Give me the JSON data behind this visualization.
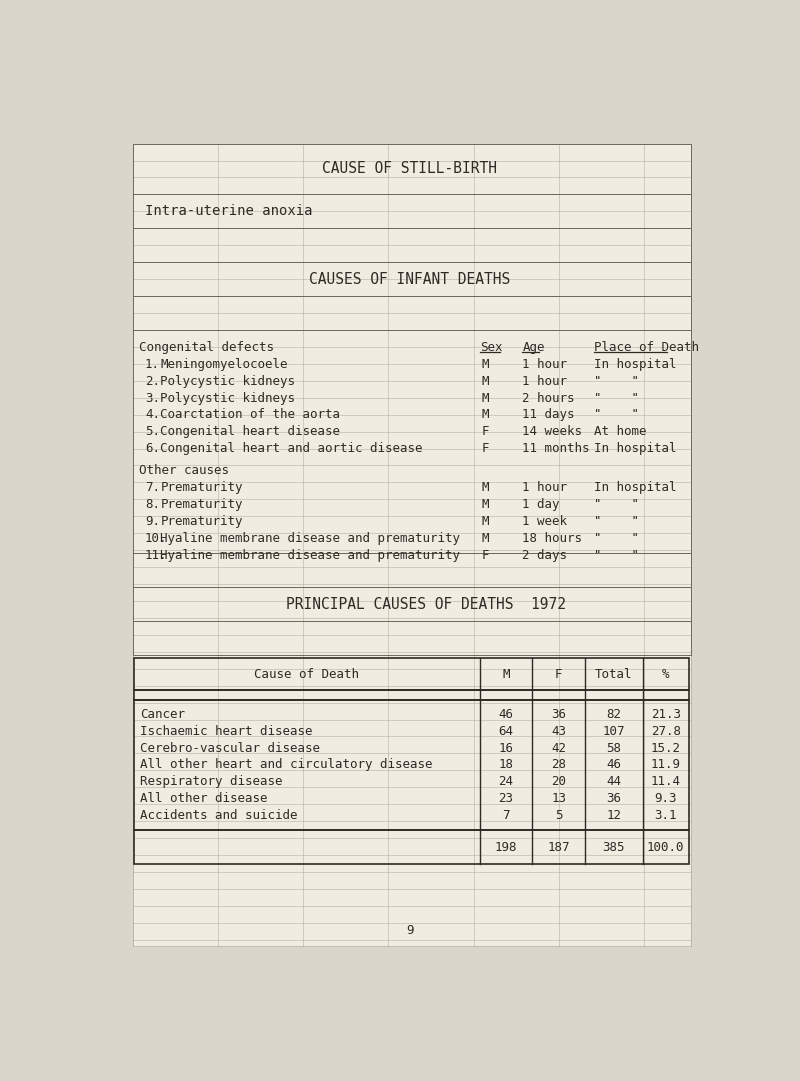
{
  "title_stillbirth": "CAUSE OF STILL-BIRTH",
  "stillbirth_cause": "Intra-uterine anoxia",
  "title_infant": "CAUSES OF INFANT DEATHS",
  "congenital_header": "Congenital defects",
  "congenital_items": [
    {
      "num": "1.",
      "desc": "Meningomyelocoele",
      "sex": "M",
      "age": "1 hour",
      "place": "In hospital"
    },
    {
      "num": "2.",
      "desc": "Polycystic kidneys",
      "sex": "M",
      "age": "1 hour",
      "place": "\"    \""
    },
    {
      "num": "3.",
      "desc": "Polycystic kidneys",
      "sex": "M",
      "age": "2 hours",
      "place": "\"    \""
    },
    {
      "num": "4.",
      "desc": "Coarctation of the aorta",
      "sex": "M",
      "age": "11 days",
      "place": "\"    \""
    },
    {
      "num": "5.",
      "desc": "Congenital heart disease",
      "sex": "F",
      "age": "14 weeks",
      "place": "At home"
    },
    {
      "num": "6.",
      "desc": "Congenital heart and aortic disease",
      "sex": "F",
      "age": "11 months",
      "place": "In hospital"
    }
  ],
  "other_header": "Other causes",
  "other_items": [
    {
      "num": "7.",
      "desc": "Prematurity",
      "sex": "M",
      "age": "1 hour",
      "place": "In hospital"
    },
    {
      "num": "8.",
      "desc": "Prematurity",
      "sex": "M",
      "age": "1 day",
      "place": "\"    \""
    },
    {
      "num": "9.",
      "desc": "Prematurity",
      "sex": "M",
      "age": "1 week",
      "place": "\"    \""
    },
    {
      "num": "10.",
      "desc": "Hyaline membrane disease and prematurity",
      "sex": "M",
      "age": "18 hours",
      "place": "\"    \""
    },
    {
      "num": "11.",
      "desc": "Hyaline membrane disease and prematurity",
      "sex": "F",
      "age": "2 days",
      "place": "\"    \""
    }
  ],
  "title_principal": "PRINCIPAL CAUSES OF DEATHS",
  "year": "1972",
  "table_rows": [
    [
      "Cancer",
      "46",
      "36",
      "82",
      "21.3"
    ],
    [
      "Ischaemic heart disease",
      "64",
      "43",
      "107",
      "27.8"
    ],
    [
      "Cerebro-vascular disease",
      "16",
      "42",
      "58",
      "15.2"
    ],
    [
      "All other heart and circulatory disease",
      "18",
      "28",
      "46",
      "11.9"
    ],
    [
      "Respiratory disease",
      "24",
      "20",
      "44",
      "11.4"
    ],
    [
      "All other disease",
      "23",
      "13",
      "36",
      "9.3"
    ],
    [
      "Accidents and suicide",
      "7",
      "5",
      "12",
      "3.1"
    ]
  ],
  "table_totals": [
    "198",
    "187",
    "385",
    "100.0"
  ],
  "page_number": "9",
  "bg_color": "#dbd6cc",
  "paper_color": "#f0ece2",
  "text_color": "#2e2a24",
  "grid_color": "#b8b0a0",
  "line_color": "#706858",
  "font_size": 9.0,
  "mono_font": "DejaVu Sans Mono"
}
